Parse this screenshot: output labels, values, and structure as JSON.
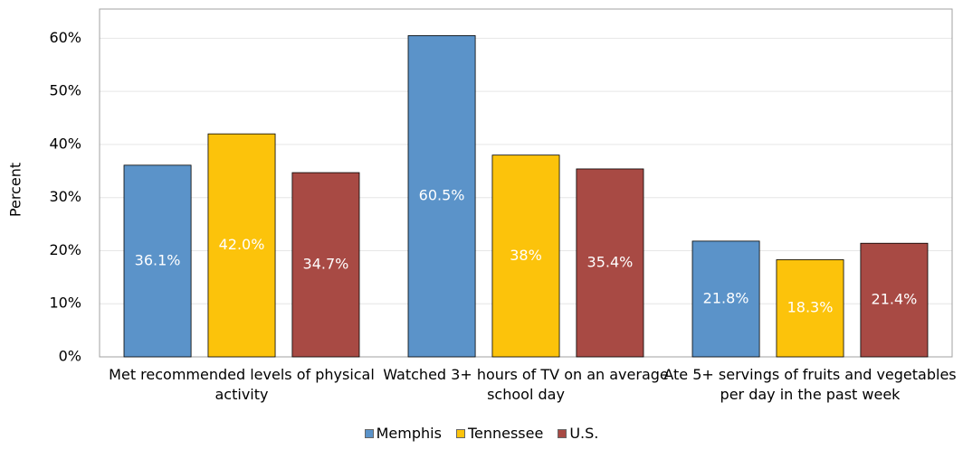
{
  "chart_data": {
    "type": "bar",
    "y_label": "Percent",
    "categories": [
      "Met recommended levels of physical activity",
      "Watched 3+ hours of TV on an average school day",
      "Ate 5+ servings of fruits and vegetables per day in the past week"
    ],
    "series": [
      {
        "name": "Memphis",
        "color": "#5b93c9",
        "values": [
          36.1,
          60.5,
          21.8
        ],
        "value_labels": [
          "36.1%",
          "60.5%",
          "21.8%"
        ]
      },
      {
        "name": "Tennessee",
        "color": "#fcc30b",
        "values": [
          42.0,
          38,
          18.3
        ],
        "value_labels": [
          "42.0%",
          "38%",
          "18.3%"
        ]
      },
      {
        "name": "U.S.",
        "color": "#a84a44",
        "values": [
          34.7,
          35.4,
          21.4
        ],
        "value_labels": [
          "34.7%",
          "35.4%",
          "21.4%"
        ]
      }
    ],
    "ylim": [
      0,
      65
    ],
    "yticks": [
      {
        "value": 0,
        "label": "0%"
      },
      {
        "value": 10,
        "label": "10%"
      },
      {
        "value": 20,
        "label": "20%"
      },
      {
        "value": 30,
        "label": "30%"
      },
      {
        "value": 40,
        "label": "40%"
      },
      {
        "value": 50,
        "label": "50%"
      },
      {
        "value": 60,
        "label": "60%"
      }
    ],
    "grid": true,
    "legend": "bottom"
  }
}
